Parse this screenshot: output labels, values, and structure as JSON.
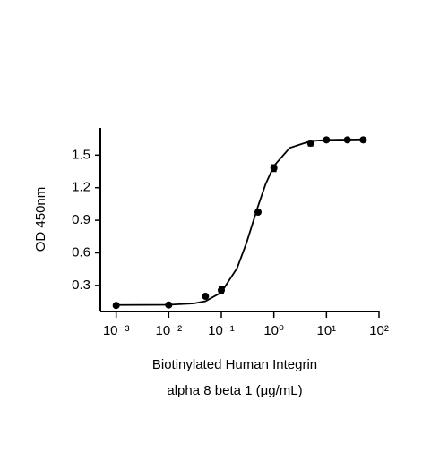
{
  "chart_data": {
    "type": "scatter",
    "ylabel": "OD 450nm",
    "xlabel": [
      "Biotinylated Human Integrin",
      "alpha 8 beta 1 (μg/mL)"
    ],
    "xscale": "log",
    "xlim": [
      0.0005,
      100
    ],
    "ylim": [
      0.06,
      1.75
    ],
    "xticks": [
      {
        "value": 0.001,
        "label": "10⁻³"
      },
      {
        "value": 0.01,
        "label": "10⁻²"
      },
      {
        "value": 0.1,
        "label": "10⁻¹"
      },
      {
        "value": 1,
        "label": "10⁰"
      },
      {
        "value": 10,
        "label": "10¹"
      },
      {
        "value": 100,
        "label": "10²"
      }
    ],
    "yticks": [
      0.3,
      0.6,
      0.9,
      1.2,
      1.5
    ],
    "grid": false,
    "series": [
      {
        "type": "scatter",
        "color": "#000000",
        "x": [
          0.001,
          0.01,
          0.05,
          0.1,
          0.5,
          1,
          5,
          10,
          25,
          50
        ],
        "values": [
          0.116,
          0.12,
          0.2,
          0.255,
          0.975,
          1.38,
          1.61,
          1.64,
          1.64,
          1.64
        ],
        "errors": [
          0.005,
          0.005,
          0.01,
          0.03,
          0.01,
          0.03,
          0.025,
          0.01,
          0.01,
          0.01
        ]
      },
      {
        "type": "line",
        "color": "#000000",
        "x": [
          0.001,
          0.01,
          0.03,
          0.05,
          0.1,
          0.2,
          0.3,
          0.5,
          0.7,
          1,
          2,
          5,
          10,
          50
        ],
        "values": [
          0.12,
          0.122,
          0.134,
          0.155,
          0.236,
          0.46,
          0.689,
          1.03,
          1.236,
          1.4,
          1.566,
          1.629,
          1.64,
          1.645
        ]
      }
    ]
  }
}
